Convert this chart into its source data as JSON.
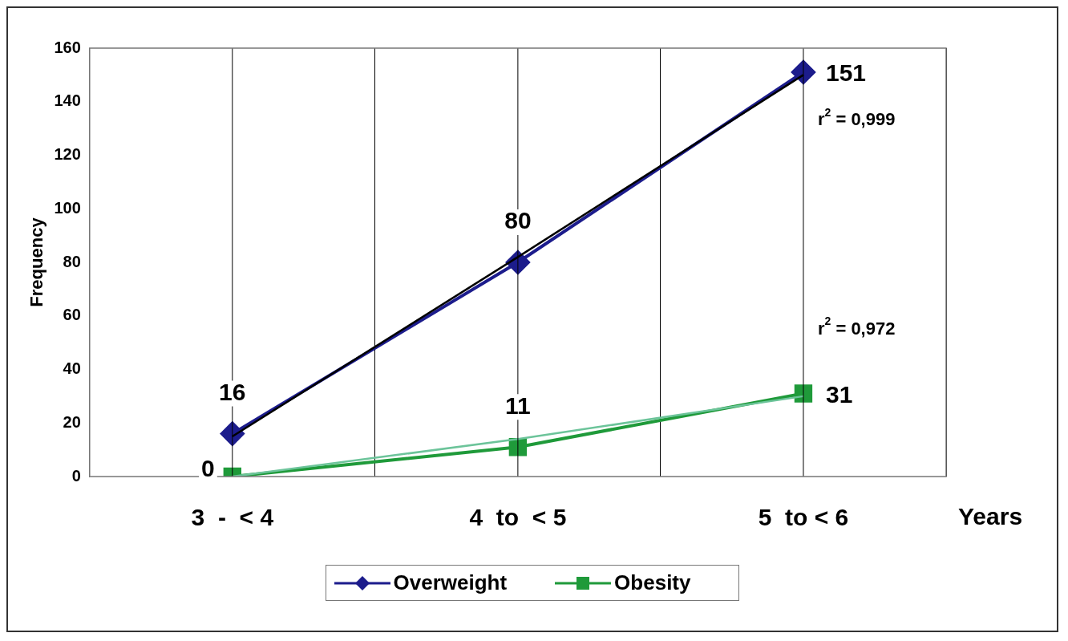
{
  "chart_data": {
    "type": "line",
    "xlabel": "Years",
    "ylabel": "Frequency",
    "categories": [
      "3  -  < 4",
      "4  to  < 5",
      "5  to < 6"
    ],
    "ylim": [
      0,
      160
    ],
    "yticks": [
      0,
      20,
      40,
      60,
      80,
      100,
      120,
      140,
      160
    ],
    "grid": "x",
    "legend": "bottom",
    "series": [
      {
        "name": "Overweight",
        "color": "#1c1c8c",
        "values": [
          16,
          80,
          151
        ],
        "value_labels": [
          "16",
          "80",
          "151"
        ],
        "marker": "diamond"
      },
      {
        "name": "Obesity",
        "color": "#1f9a3a",
        "values": [
          0,
          11,
          31
        ],
        "value_labels": [
          "0",
          "11",
          "31"
        ],
        "marker": "square"
      },
      {
        "type": "line",
        "color": "#000000",
        "x": [
          "3  -  < 4",
          "4  to  < 5",
          "5  to < 6"
        ],
        "values": [
          15,
          82,
          150
        ],
        "marker": "none"
      },
      {
        "type": "line",
        "color": "#6cc49a",
        "x": [
          "3  -  < 4",
          "4  to  < 5",
          "5  to < 6"
        ],
        "values": [
          0,
          14,
          30
        ],
        "marker": "none"
      }
    ],
    "annotations": [
      "r$^{2}$ = 0,999",
      "r$^{2}$ = 0,972"
    ]
  }
}
